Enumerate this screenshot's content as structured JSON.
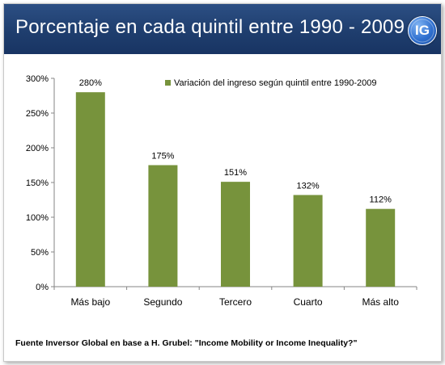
{
  "header": {
    "title": "Porcentaje en cada quintil entre 1990 - 2009",
    "logo_text": "IG"
  },
  "source": "Fuente Inversor Global en base a H. Grubel: \"Income Mobility or Income Inequality?\"",
  "colors": {
    "header": "#1f3e6e",
    "bar": "#77933c",
    "logo": "#2f6fcf"
  },
  "chart_data": {
    "type": "bar",
    "categories": [
      "Más bajo",
      "Segundo",
      "Tercero",
      "Cuarto",
      "Más alto"
    ],
    "series": [
      {
        "name": "Variación del ingreso según quintil entre 1990-2009",
        "values": [
          280,
          175,
          151,
          132,
          112
        ],
        "labels": [
          "280%",
          "175%",
          "151%",
          "132%",
          "112%"
        ]
      }
    ],
    "yticks": [
      "0%",
      "50%",
      "100%",
      "150%",
      "200%",
      "250%",
      "300%"
    ],
    "ylim": [
      0,
      300
    ],
    "legend": "top-right",
    "grid": false
  }
}
